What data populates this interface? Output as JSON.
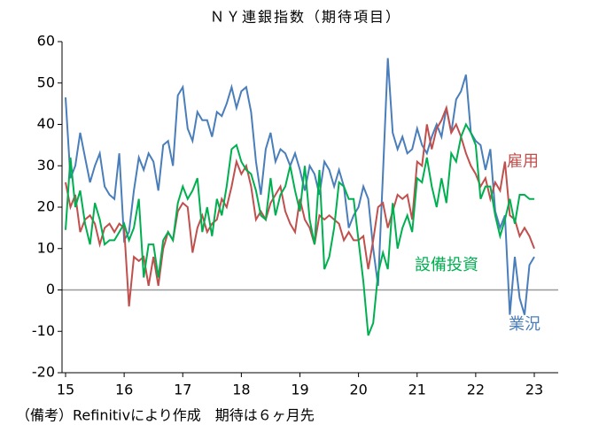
{
  "chart_data": {
    "type": "line",
    "title": "ＮＹ連銀指数（期待項目）",
    "note": "（備考）Refinitivにより作成　期待は６ヶ月先",
    "categories": [
      "15",
      null,
      null,
      null,
      null,
      null,
      null,
      null,
      null,
      null,
      null,
      null,
      "16",
      null,
      null,
      null,
      null,
      null,
      null,
      null,
      null,
      null,
      null,
      null,
      "17",
      null,
      null,
      null,
      null,
      null,
      null,
      null,
      null,
      null,
      null,
      null,
      "18",
      null,
      null,
      null,
      null,
      null,
      null,
      null,
      null,
      null,
      null,
      null,
      "19",
      null,
      null,
      null,
      null,
      null,
      null,
      null,
      null,
      null,
      null,
      null,
      "20",
      null,
      null,
      null,
      null,
      null,
      null,
      null,
      null,
      null,
      null,
      null,
      "21",
      null,
      null,
      null,
      null,
      null,
      null,
      null,
      null,
      null,
      null,
      null,
      "22",
      null,
      null,
      null,
      null,
      null,
      null,
      null,
      null,
      null,
      null,
      null,
      "23"
    ],
    "ylim": [
      -20,
      60
    ],
    "yticks": [
      -20,
      -10,
      0,
      10,
      20,
      30,
      40,
      50,
      60
    ],
    "series": [
      {
        "name": "業況",
        "color": "#4a7ebb",
        "values": [
          46.5,
          27,
          30,
          38,
          32,
          26,
          30,
          33,
          25,
          23,
          22,
          33,
          12,
          14,
          24,
          32,
          29,
          33,
          31,
          24,
          35,
          36,
          30,
          47,
          49,
          39,
          36,
          43,
          41,
          41,
          37,
          43,
          42,
          45,
          49,
          44,
          48,
          49,
          43,
          31,
          23,
          34,
          38,
          31,
          34,
          33,
          30,
          33,
          29,
          24,
          30,
          28,
          23,
          31,
          29,
          25,
          29,
          25,
          15,
          18,
          20,
          25,
          22,
          10,
          1,
          28,
          56,
          38,
          34,
          37,
          33,
          34,
          39,
          35,
          33,
          37,
          40,
          37,
          44,
          38,
          46,
          48,
          52,
          38,
          36,
          35,
          29,
          34,
          19,
          15,
          18,
          -6,
          8,
          -2,
          -6,
          6,
          8
        ]
      },
      {
        "name": "雇用",
        "color": "#c0504d",
        "values": [
          26,
          20,
          23,
          14,
          17,
          18,
          16,
          11,
          15,
          16,
          14,
          16,
          15,
          -4,
          8,
          7,
          8,
          1,
          8,
          1,
          10,
          14,
          12,
          19,
          21,
          20,
          9,
          15,
          18,
          14,
          16,
          17,
          22,
          20,
          25,
          31,
          28,
          30,
          25,
          17,
          19,
          17,
          21,
          23,
          25,
          19,
          16,
          14,
          22,
          17,
          15,
          11,
          18,
          17,
          18,
          17,
          16,
          12,
          14,
          12,
          12,
          13,
          5,
          12,
          20,
          21,
          15,
          19,
          23,
          22,
          23,
          17,
          31,
          30,
          40,
          34,
          39,
          41,
          44,
          38,
          40,
          37,
          33,
          30,
          28,
          25,
          27,
          22,
          26,
          24,
          31,
          18,
          17,
          13,
          15,
          13,
          10
        ]
      },
      {
        "name": "設備投資",
        "color": "#00b050",
        "values": [
          14.5,
          32,
          20,
          24,
          16,
          11,
          21,
          17,
          11,
          12,
          12,
          14,
          16,
          12,
          15,
          22,
          3,
          11,
          11,
          3,
          12,
          14,
          12,
          21,
          25,
          22,
          24,
          27,
          14,
          20,
          13,
          22,
          18,
          25,
          34,
          35,
          31,
          29,
          28,
          24,
          18,
          17,
          27,
          18,
          23,
          25,
          30,
          24,
          19,
          30,
          17,
          11,
          29,
          5,
          8,
          15,
          26,
          25,
          22,
          22,
          12,
          2,
          -11,
          -8,
          4,
          9,
          5,
          21,
          10,
          15,
          18,
          14,
          27,
          26,
          32,
          25,
          20,
          27,
          21,
          33,
          31,
          37,
          40,
          38,
          35,
          22,
          25,
          25,
          18,
          13,
          17,
          22,
          16,
          23,
          23,
          22,
          22
        ]
      }
    ]
  }
}
